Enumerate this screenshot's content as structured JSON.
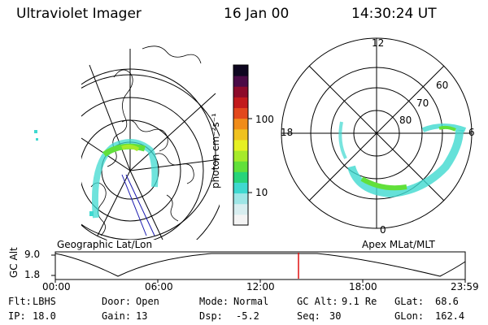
{
  "header": {
    "title": "Ultraviolet Imager",
    "date": "16 Jan 00",
    "time": "14:30:24 UT"
  },
  "panels": {
    "left_label": "Geographic Lat/Lon",
    "right_label": "Apex MLat/MLT",
    "right_mlt": {
      "top": "12",
      "left": "18",
      "right": "6",
      "bottom": "0"
    },
    "right_mlat": [
      "60",
      "70",
      "80"
    ]
  },
  "colorbar": {
    "unit_label": "photon cm⁻²s⁻¹",
    "ticks": [
      "100",
      "10"
    ],
    "colors": [
      "#f4f4f4",
      "#d8eef0",
      "#9ee6e6",
      "#3fd9d0",
      "#27d47a",
      "#61e03a",
      "#a6ea2a",
      "#e6f023",
      "#f0c21f",
      "#f08c1a",
      "#e3481c",
      "#c21a1c",
      "#8c0a2a",
      "#4a0a46",
      "#0e0620"
    ]
  },
  "timeline": {
    "y_label": "GC Alt",
    "y_ticks": [
      "9.0",
      "1.8"
    ],
    "x_ticks": [
      "00:00",
      "06:00",
      "12:00",
      "18:00",
      "23:59"
    ],
    "current_marker_color": "#e01010"
  },
  "info": {
    "filter_label": "Flt:",
    "filter_value": "LBHS",
    "door_label": "Door:",
    "door_value": "Open",
    "mode_label": "Mode:",
    "mode_value": "Normal",
    "gcalt_label": "GC Alt:",
    "gcalt_value": "9.1 Re",
    "glat_label": "GLat:",
    "glat_value": "68.6",
    "ip_label": "IP:",
    "ip_value": "18.0",
    "gain_label": "Gain:",
    "gain_value": "13",
    "dsp_label": "Dsp:",
    "dsp_value": "-5.2",
    "seq_label": "Seq:",
    "seq_value": "30",
    "glon_label": "GLon:",
    "glon_value": "162.4"
  }
}
